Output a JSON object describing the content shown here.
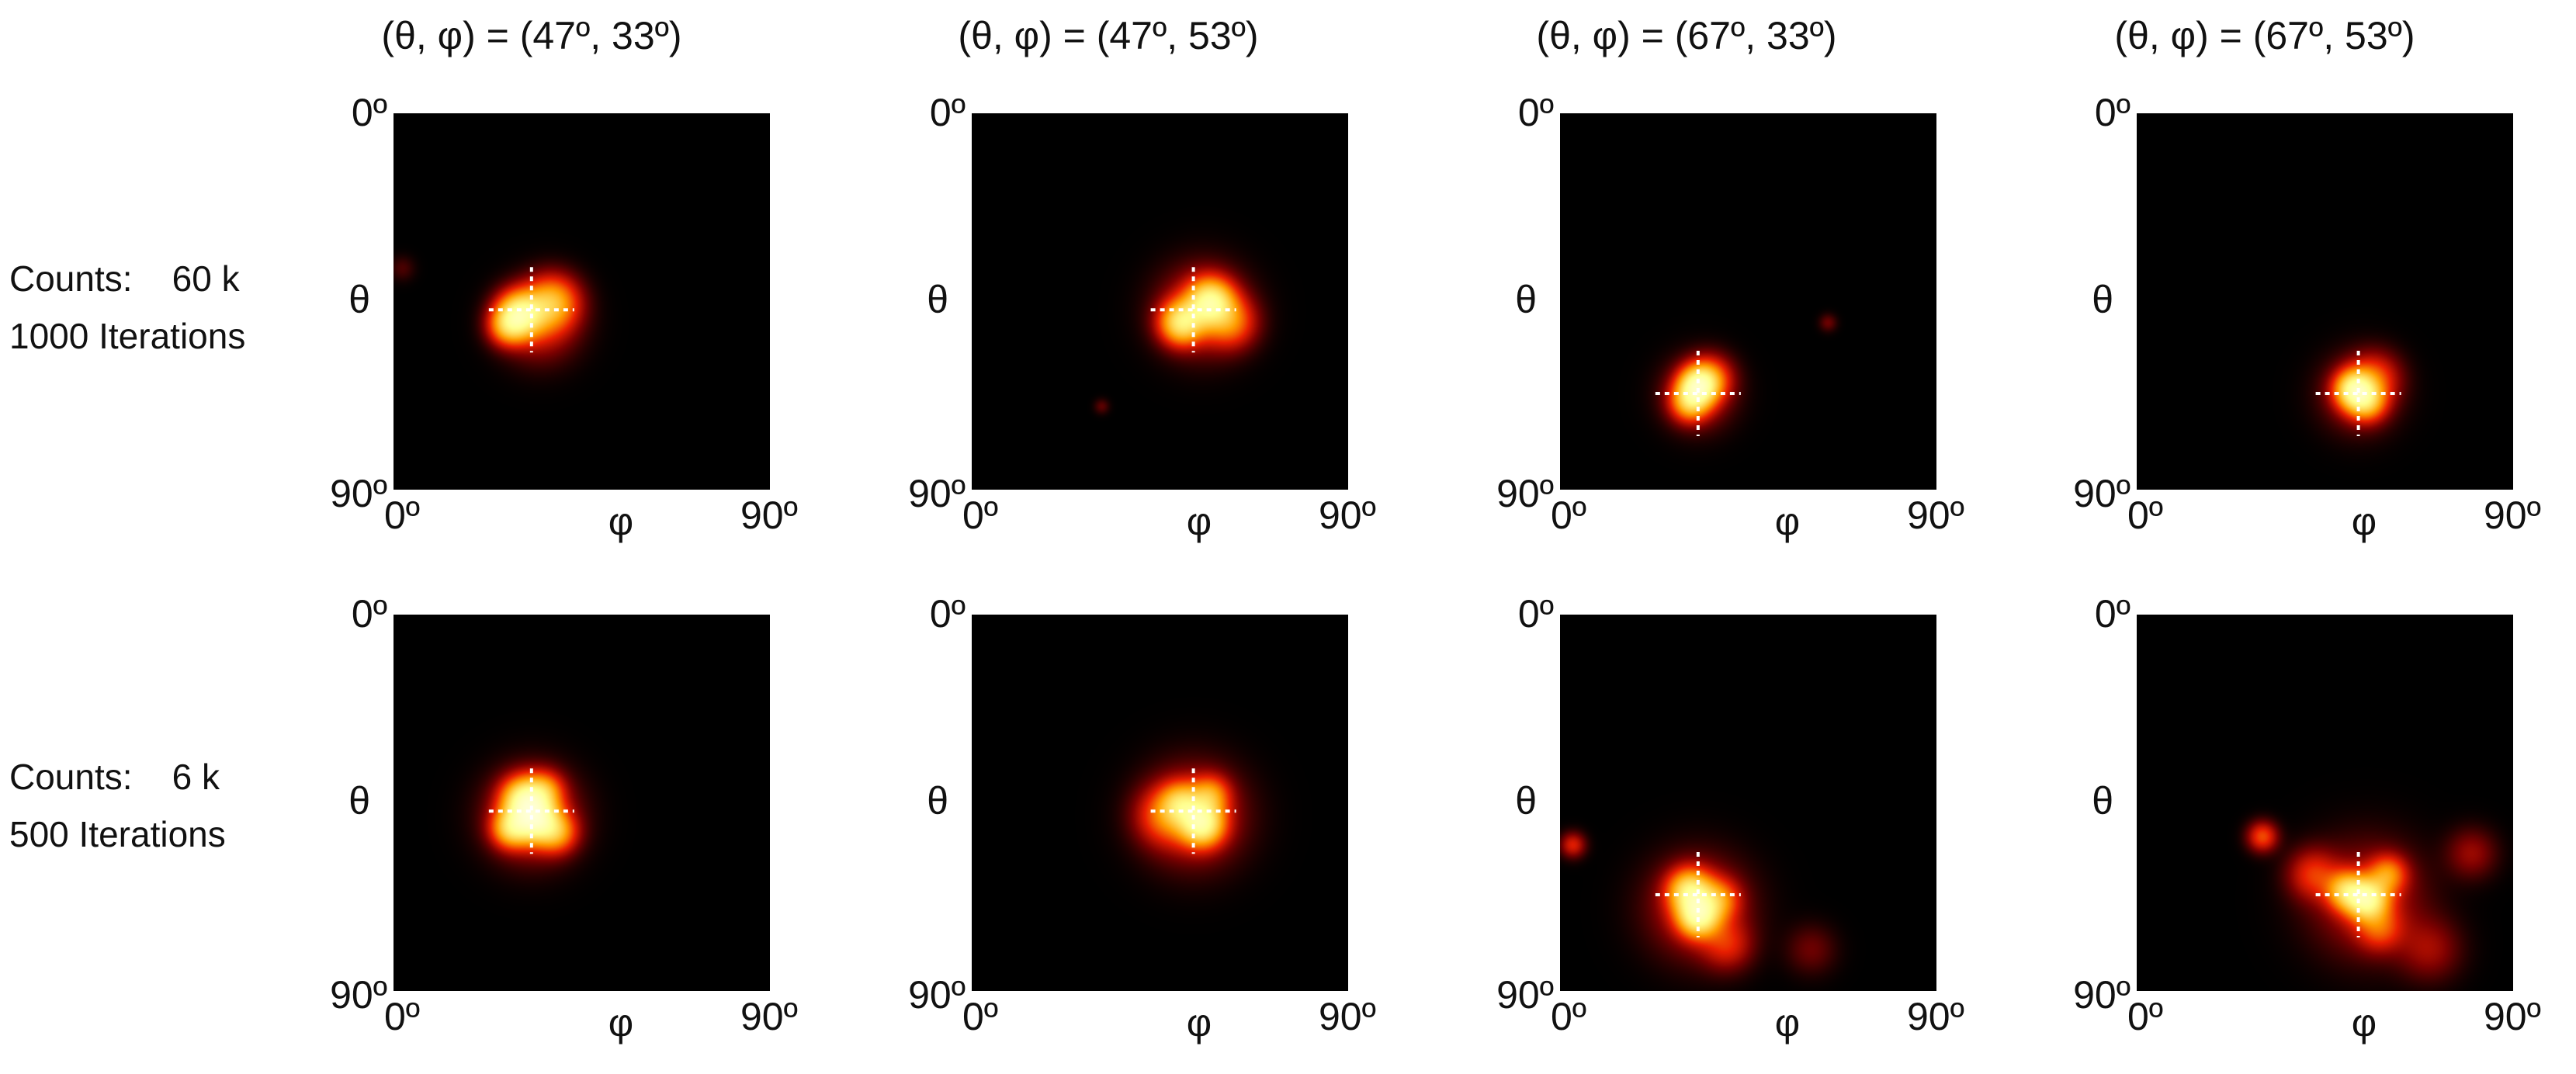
{
  "column_titles": [
    "(θ, φ) = (47º, 33º)",
    "(θ, φ) = (47º, 53º)",
    "(θ, φ) = (67º, 33º)",
    "(θ, φ) = (67º, 53º)"
  ],
  "row_labels": [
    "Counts:    60 k\n1000 Iterations",
    "Counts:    6 k\n500 Iterations"
  ],
  "chart_data": {
    "type": "heatmap",
    "layout": "2 rows x 4 columns",
    "colormap": [
      "#000000",
      "#7a0000",
      "#e81e00",
      "#ff9c00",
      "#ffff90",
      "#ffffff"
    ],
    "marker_color": "#ffffff",
    "grid": false,
    "xlabel": "φ",
    "ylabel": "θ",
    "x_ticks": [
      "0º",
      "90º"
    ],
    "y_ticks": [
      "0º",
      "90º"
    ],
    "xlim": [
      0,
      90
    ],
    "ylim": [
      0,
      90
    ],
    "panels": [
      {
        "row": 0,
        "col": 0,
        "true_theta": 47,
        "true_phi": 33,
        "blobs": [
          {
            "phi": 30,
            "theta": 48,
            "sigma": 3.6,
            "amp": 1.0
          },
          {
            "phi": 38,
            "theta": 45,
            "sigma": 4.2,
            "amp": 0.6
          },
          {
            "phi": 27,
            "theta": 51,
            "sigma": 3.0,
            "amp": 0.45
          },
          {
            "phi": 35,
            "theta": 50,
            "sigma": 6.0,
            "amp": 0.3
          },
          {
            "phi": 2,
            "theta": 37,
            "sigma": 2.0,
            "amp": 0.08
          }
        ]
      },
      {
        "row": 0,
        "col": 1,
        "true_theta": 47,
        "true_phi": 53,
        "blobs": [
          {
            "phi": 57,
            "theta": 45,
            "sigma": 3.6,
            "amp": 0.95
          },
          {
            "phi": 50,
            "theta": 50,
            "sigma": 3.4,
            "amp": 0.85
          },
          {
            "phi": 62,
            "theta": 50,
            "sigma": 4.0,
            "amp": 0.4
          },
          {
            "phi": 55,
            "theta": 47,
            "sigma": 7.0,
            "amp": 0.3
          },
          {
            "phi": 31,
            "theta": 70,
            "sigma": 1.2,
            "amp": 0.1
          }
        ]
      },
      {
        "row": 0,
        "col": 2,
        "true_theta": 67,
        "true_phi": 33,
        "blobs": [
          {
            "phi": 33,
            "theta": 65,
            "sigma": 3.0,
            "amp": 1.0
          },
          {
            "phi": 31,
            "theta": 69,
            "sigma": 3.0,
            "amp": 0.6
          },
          {
            "phi": 36,
            "theta": 63,
            "sigma": 3.5,
            "amp": 0.35
          },
          {
            "phi": 33,
            "theta": 67,
            "sigma": 5.5,
            "amp": 0.25
          },
          {
            "phi": 64,
            "theta": 50,
            "sigma": 1.4,
            "amp": 0.12
          }
        ]
      },
      {
        "row": 0,
        "col": 3,
        "true_theta": 67,
        "true_phi": 53,
        "blobs": [
          {
            "phi": 52,
            "theta": 66,
            "sigma": 3.0,
            "amp": 1.0
          },
          {
            "phi": 55,
            "theta": 69,
            "sigma": 3.0,
            "amp": 0.55
          },
          {
            "phi": 57,
            "theta": 63,
            "sigma": 4.0,
            "amp": 0.3
          },
          {
            "phi": 53,
            "theta": 67,
            "sigma": 6.0,
            "amp": 0.22
          }
        ]
      },
      {
        "row": 1,
        "col": 0,
        "true_theta": 47,
        "true_phi": 33,
        "blobs": [
          {
            "phi": 31,
            "theta": 44,
            "sigma": 3.4,
            "amp": 0.9
          },
          {
            "phi": 34,
            "theta": 49,
            "sigma": 3.4,
            "amp": 1.0
          },
          {
            "phi": 28,
            "theta": 51,
            "sigma": 3.0,
            "amp": 0.7
          },
          {
            "phi": 39,
            "theta": 52,
            "sigma": 3.2,
            "amp": 0.5
          },
          {
            "phi": 36,
            "theta": 42,
            "sigma": 3.0,
            "amp": 0.45
          },
          {
            "phi": 33,
            "theta": 48,
            "sigma": 7.0,
            "amp": 0.35
          }
        ]
      },
      {
        "row": 1,
        "col": 1,
        "true_theta": 47,
        "true_phi": 53,
        "blobs": [
          {
            "phi": 55,
            "theta": 50,
            "sigma": 3.4,
            "amp": 1.0
          },
          {
            "phi": 50,
            "theta": 45,
            "sigma": 3.2,
            "amp": 0.55
          },
          {
            "phi": 57,
            "theta": 43,
            "sigma": 3.0,
            "amp": 0.45
          },
          {
            "phi": 46,
            "theta": 48,
            "sigma": 4.5,
            "amp": 0.35
          },
          {
            "phi": 53,
            "theta": 48,
            "sigma": 8.0,
            "amp": 0.3
          }
        ]
      },
      {
        "row": 1,
        "col": 2,
        "true_theta": 67,
        "true_phi": 33,
        "blobs": [
          {
            "phi": 33,
            "theta": 72,
            "sigma": 3.2,
            "amp": 1.0
          },
          {
            "phi": 31,
            "theta": 66,
            "sigma": 3.4,
            "amp": 0.85
          },
          {
            "phi": 38,
            "theta": 68,
            "sigma": 3.2,
            "amp": 0.4
          },
          {
            "phi": 40,
            "theta": 79,
            "sigma": 4.0,
            "amp": 0.25
          },
          {
            "phi": 33,
            "theta": 70,
            "sigma": 8.0,
            "amp": 0.28
          },
          {
            "phi": 3,
            "theta": 55,
            "sigma": 2.0,
            "amp": 0.3
          },
          {
            "phi": 60,
            "theta": 80,
            "sigma": 4.0,
            "amp": 0.12
          }
        ]
      },
      {
        "row": 1,
        "col": 3,
        "true_theta": 67,
        "true_phi": 53,
        "blobs": [
          {
            "phi": 55,
            "theta": 68,
            "sigma": 3.2,
            "amp": 1.0
          },
          {
            "phi": 50,
            "theta": 66,
            "sigma": 3.0,
            "amp": 0.65
          },
          {
            "phi": 60,
            "theta": 62,
            "sigma": 3.0,
            "amp": 0.45
          },
          {
            "phi": 58,
            "theta": 75,
            "sigma": 3.5,
            "amp": 0.3
          },
          {
            "phi": 30,
            "theta": 53,
            "sigma": 2.4,
            "amp": 0.4
          },
          {
            "phi": 42,
            "theta": 62,
            "sigma": 4.0,
            "amp": 0.3
          },
          {
            "phi": 80,
            "theta": 57,
            "sigma": 4.0,
            "amp": 0.18
          },
          {
            "phi": 70,
            "theta": 80,
            "sigma": 5.0,
            "amp": 0.18
          },
          {
            "phi": 55,
            "theta": 68,
            "sigma": 9.0,
            "amp": 0.25
          }
        ]
      }
    ]
  }
}
